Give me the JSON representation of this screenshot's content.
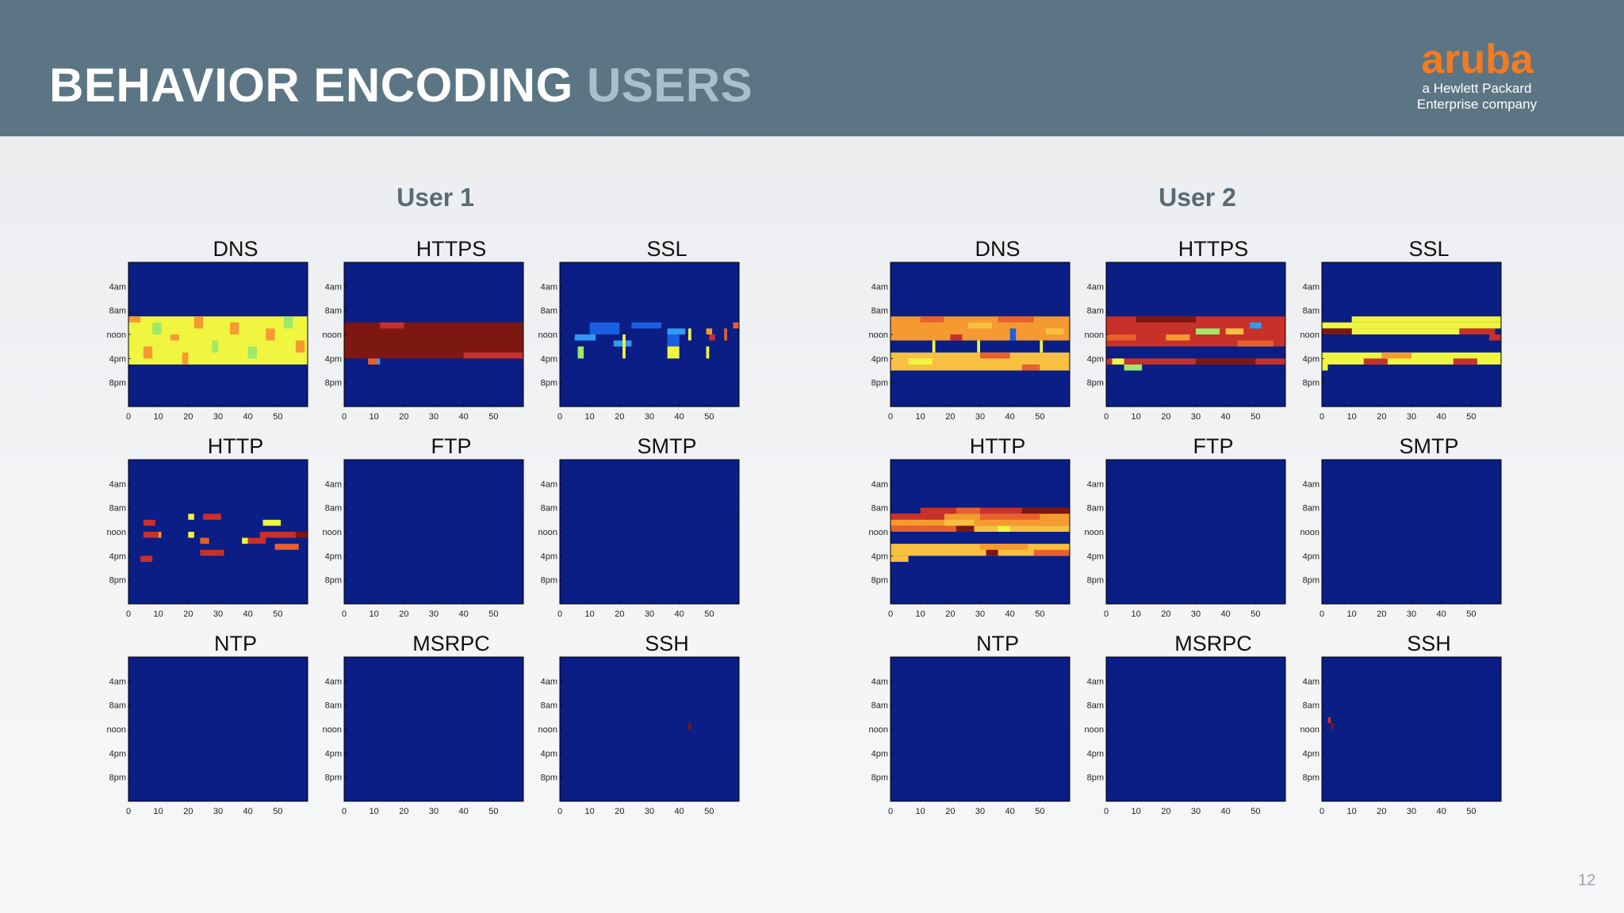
{
  "slide": {
    "title_main": "BEHAVIOR ENCODING",
    "title_accent": "USERS",
    "page_number": "12"
  },
  "logo": {
    "brand": "aruba",
    "tagline_1": "a Hewlett Packard",
    "tagline_2": "Enterprise company",
    "color": "#f47b20"
  },
  "colors": {
    "header": "#5b7584",
    "background": "#0a1e85",
    "levels": [
      "#0a1e85",
      "#1a5fe0",
      "#2f9bf4",
      "#9ee86a",
      "#f0f540",
      "#f8c040",
      "#f59a30",
      "#e8602c",
      "#c8302a",
      "#7d1712"
    ]
  },
  "chart_data": [
    {
      "user": "User 1",
      "type": "heatmap",
      "y_tick_labels": [
        "4am",
        "8am",
        "noon",
        "4pm",
        "8pm"
      ],
      "x_ticks": [
        0,
        10,
        20,
        30,
        40,
        50
      ],
      "xlim": [
        0,
        60
      ],
      "panels": [
        {
          "protocol": "DNS",
          "blocks": [
            {
              "x0": 0,
              "x1": 60,
              "y0": 9,
              "y1": 17,
              "level": 4
            },
            {
              "x0": 0,
              "x1": 4,
              "y0": 9,
              "y1": 10,
              "level": 6
            },
            {
              "x0": 8,
              "x1": 11,
              "y0": 10,
              "y1": 12,
              "level": 3
            },
            {
              "x0": 14,
              "x1": 17,
              "y0": 12,
              "y1": 13,
              "level": 6
            },
            {
              "x0": 22,
              "x1": 25,
              "y0": 9,
              "y1": 11,
              "level": 6
            },
            {
              "x0": 28,
              "x1": 30,
              "y0": 13,
              "y1": 15,
              "level": 3
            },
            {
              "x0": 34,
              "x1": 37,
              "y0": 10,
              "y1": 12,
              "level": 6
            },
            {
              "x0": 40,
              "x1": 43,
              "y0": 14,
              "y1": 16,
              "level": 3
            },
            {
              "x0": 46,
              "x1": 49,
              "y0": 11,
              "y1": 13,
              "level": 6
            },
            {
              "x0": 52,
              "x1": 55,
              "y0": 9,
              "y1": 11,
              "level": 3
            },
            {
              "x0": 5,
              "x1": 8,
              "y0": 14,
              "y1": 16,
              "level": 6
            },
            {
              "x0": 18,
              "x1": 20,
              "y0": 15,
              "y1": 17,
              "level": 6
            },
            {
              "x0": 56,
              "x1": 59,
              "y0": 13,
              "y1": 15,
              "level": 6
            }
          ]
        },
        {
          "protocol": "HTTPS",
          "blocks": [
            {
              "x0": 0,
              "x1": 60,
              "y0": 10,
              "y1": 16,
              "level": 9
            },
            {
              "x0": 12,
              "x1": 20,
              "y0": 10,
              "y1": 11,
              "level": 8
            },
            {
              "x0": 40,
              "x1": 60,
              "y0": 15,
              "y1": 16,
              "level": 8
            },
            {
              "x0": 8,
              "x1": 12,
              "y0": 16,
              "y1": 17,
              "level": 7
            },
            {
              "x0": 11,
              "x1": 12,
              "y0": 16,
              "y1": 17,
              "level": 2
            }
          ]
        },
        {
          "protocol": "SSL",
          "blocks": [
            {
              "x0": 10,
              "x1": 20,
              "y0": 10,
              "y1": 12,
              "level": 1
            },
            {
              "x0": 24,
              "x1": 34,
              "y0": 10,
              "y1": 11,
              "level": 1
            },
            {
              "x0": 36,
              "x1": 40,
              "y0": 12,
              "y1": 14,
              "level": 1
            },
            {
              "x0": 5,
              "x1": 12,
              "y0": 12,
              "y1": 13,
              "level": 2
            },
            {
              "x0": 18,
              "x1": 24,
              "y0": 13,
              "y1": 14,
              "level": 2
            },
            {
              "x0": 36,
              "x1": 42,
              "y0": 11,
              "y1": 12,
              "level": 2
            },
            {
              "x0": 6,
              "x1": 8,
              "y0": 14,
              "y1": 16,
              "level": 3
            },
            {
              "x0": 36,
              "x1": 40,
              "y0": 14,
              "y1": 16,
              "level": 4
            },
            {
              "x0": 21,
              "x1": 22,
              "y0": 12,
              "y1": 16,
              "level": 4
            },
            {
              "x0": 43,
              "x1": 44,
              "y0": 11,
              "y1": 13,
              "level": 4
            },
            {
              "x0": 49,
              "x1": 51,
              "y0": 11,
              "y1": 12,
              "level": 6
            },
            {
              "x0": 50,
              "x1": 52,
              "y0": 12,
              "y1": 13,
              "level": 8
            },
            {
              "x0": 55,
              "x1": 56,
              "y0": 11,
              "y1": 13,
              "level": 7
            },
            {
              "x0": 49,
              "x1": 50,
              "y0": 14,
              "y1": 16,
              "level": 4
            },
            {
              "x0": 58,
              "x1": 60,
              "y0": 10,
              "y1": 11,
              "level": 7
            }
          ]
        },
        {
          "protocol": "HTTP",
          "blocks": [
            {
              "x0": 5,
              "x1": 9,
              "y0": 10,
              "y1": 11,
              "level": 8
            },
            {
              "x0": 20,
              "x1": 22,
              "y0": 9,
              "y1": 10,
              "level": 4
            },
            {
              "x0": 25,
              "x1": 31,
              "y0": 9,
              "y1": 10,
              "level": 8
            },
            {
              "x0": 5,
              "x1": 10,
              "y0": 12,
              "y1": 13,
              "level": 8
            },
            {
              "x0": 10,
              "x1": 11,
              "y0": 12,
              "y1": 13,
              "level": 6
            },
            {
              "x0": 20,
              "x1": 22,
              "y0": 12,
              "y1": 13,
              "level": 4
            },
            {
              "x0": 24,
              "x1": 27,
              "y0": 13,
              "y1": 14,
              "level": 7
            },
            {
              "x0": 38,
              "x1": 40,
              "y0": 13,
              "y1": 14,
              "level": 4
            },
            {
              "x0": 40,
              "x1": 46,
              "y0": 13,
              "y1": 14,
              "level": 8
            },
            {
              "x0": 44,
              "x1": 56,
              "y0": 12,
              "y1": 13,
              "level": 8
            },
            {
              "x0": 56,
              "x1": 60,
              "y0": 12,
              "y1": 13,
              "level": 9
            },
            {
              "x0": 45,
              "x1": 51,
              "y0": 10,
              "y1": 11,
              "level": 4
            },
            {
              "x0": 49,
              "x1": 57,
              "y0": 14,
              "y1": 15,
              "level": 7
            },
            {
              "x0": 24,
              "x1": 32,
              "y0": 15,
              "y1": 16,
              "level": 8
            },
            {
              "x0": 4,
              "x1": 8,
              "y0": 16,
              "y1": 17,
              "level": 8
            }
          ]
        },
        {
          "protocol": "FTP",
          "blocks": []
        },
        {
          "protocol": "SMTP",
          "blocks": []
        },
        {
          "protocol": "NTP",
          "blocks": []
        },
        {
          "protocol": "MSRPC",
          "blocks": []
        },
        {
          "protocol": "SSH",
          "blocks": [
            {
              "x0": 43,
              "x1": 44,
              "y0": 11,
              "y1": 12,
              "level": 9
            }
          ]
        }
      ]
    },
    {
      "user": "User 2",
      "type": "heatmap",
      "y_tick_labels": [
        "4am",
        "8am",
        "noon",
        "4pm",
        "8pm"
      ],
      "x_ticks": [
        0,
        10,
        20,
        30,
        40,
        50
      ],
      "xlim": [
        0,
        60
      ],
      "panels": [
        {
          "protocol": "DNS",
          "blocks": [
            {
              "x0": 0,
              "x1": 60,
              "y0": 9,
              "y1": 13,
              "level": 6
            },
            {
              "x0": 0,
              "x1": 60,
              "y0": 15,
              "y1": 18,
              "level": 5
            },
            {
              "x0": 10,
              "x1": 18,
              "y0": 9,
              "y1": 10,
              "level": 7
            },
            {
              "x0": 26,
              "x1": 34,
              "y0": 10,
              "y1": 11,
              "level": 5
            },
            {
              "x0": 36,
              "x1": 48,
              "y0": 9,
              "y1": 10,
              "level": 7
            },
            {
              "x0": 52,
              "x1": 58,
              "y0": 11,
              "y1": 12,
              "level": 5
            },
            {
              "x0": 20,
              "x1": 24,
              "y0": 12,
              "y1": 13,
              "level": 8
            },
            {
              "x0": 40,
              "x1": 42,
              "y0": 11,
              "y1": 13,
              "level": 1
            },
            {
              "x0": 14,
              "x1": 15,
              "y0": 13,
              "y1": 15,
              "level": 4
            },
            {
              "x0": 29,
              "x1": 30,
              "y0": 13,
              "y1": 15,
              "level": 4
            },
            {
              "x0": 50,
              "x1": 51,
              "y0": 13,
              "y1": 15,
              "level": 4
            },
            {
              "x0": 6,
              "x1": 14,
              "y0": 16,
              "y1": 17,
              "level": 4
            },
            {
              "x0": 30,
              "x1": 40,
              "y0": 15,
              "y1": 16,
              "level": 7
            },
            {
              "x0": 44,
              "x1": 50,
              "y0": 17,
              "y1": 18,
              "level": 7
            }
          ]
        },
        {
          "protocol": "HTTPS",
          "blocks": [
            {
              "x0": 0,
              "x1": 60,
              "y0": 9,
              "y1": 14,
              "level": 8
            },
            {
              "x0": 0,
              "x1": 60,
              "y0": 16,
              "y1": 17,
              "level": 8
            },
            {
              "x0": 10,
              "x1": 30,
              "y0": 9,
              "y1": 10,
              "level": 9
            },
            {
              "x0": 30,
              "x1": 38,
              "y0": 11,
              "y1": 12,
              "level": 3
            },
            {
              "x0": 40,
              "x1": 46,
              "y0": 11,
              "y1": 12,
              "level": 5
            },
            {
              "x0": 48,
              "x1": 52,
              "y0": 10,
              "y1": 11,
              "level": 2
            },
            {
              "x0": 20,
              "x1": 28,
              "y0": 12,
              "y1": 13,
              "level": 6
            },
            {
              "x0": 44,
              "x1": 56,
              "y0": 13,
              "y1": 14,
              "level": 7
            },
            {
              "x0": 0,
              "x1": 10,
              "y0": 12,
              "y1": 13,
              "level": 7
            },
            {
              "x0": 2,
              "x1": 6,
              "y0": 16,
              "y1": 17,
              "level": 4
            },
            {
              "x0": 6,
              "x1": 12,
              "y0": 17,
              "y1": 18,
              "level": 3
            },
            {
              "x0": 30,
              "x1": 50,
              "y0": 16,
              "y1": 17,
              "level": 9
            }
          ]
        },
        {
          "protocol": "SSL",
          "blocks": [
            {
              "x0": 10,
              "x1": 60,
              "y0": 9,
              "y1": 10,
              "level": 4
            },
            {
              "x0": 0,
              "x1": 60,
              "y0": 10,
              "y1": 11,
              "level": 4
            },
            {
              "x0": 10,
              "x1": 55,
              "y0": 11,
              "y1": 12,
              "level": 4
            },
            {
              "x0": 0,
              "x1": 10,
              "y0": 11,
              "y1": 12,
              "level": 9
            },
            {
              "x0": 46,
              "x1": 58,
              "y0": 11,
              "y1": 12,
              "level": 8
            },
            {
              "x0": 56,
              "x1": 60,
              "y0": 12,
              "y1": 13,
              "level": 8
            },
            {
              "x0": 0,
              "x1": 60,
              "y0": 15,
              "y1": 17,
              "level": 4
            },
            {
              "x0": 14,
              "x1": 22,
              "y0": 16,
              "y1": 17,
              "level": 8
            },
            {
              "x0": 44,
              "x1": 52,
              "y0": 16,
              "y1": 17,
              "level": 8
            },
            {
              "x0": 0,
              "x1": 2,
              "y0": 17,
              "y1": 18,
              "level": 4
            },
            {
              "x0": 20,
              "x1": 30,
              "y0": 15,
              "y1": 16,
              "level": 6
            }
          ]
        },
        {
          "protocol": "HTTP",
          "blocks": [
            {
              "x0": 10,
              "x1": 60,
              "y0": 8,
              "y1": 9,
              "level": 8
            },
            {
              "x0": 22,
              "x1": 30,
              "y0": 8,
              "y1": 9,
              "level": 7
            },
            {
              "x0": 44,
              "x1": 60,
              "y0": 8,
              "y1": 9,
              "level": 9
            },
            {
              "x0": 0,
              "x1": 60,
              "y0": 9,
              "y1": 11,
              "level": 6
            },
            {
              "x0": 0,
              "x1": 18,
              "y0": 9,
              "y1": 10,
              "level": 8
            },
            {
              "x0": 18,
              "x1": 28,
              "y0": 10,
              "y1": 11,
              "level": 5
            },
            {
              "x0": 30,
              "x1": 50,
              "y0": 9,
              "y1": 10,
              "level": 7
            },
            {
              "x0": 0,
              "x1": 22,
              "y0": 11,
              "y1": 12,
              "level": 7
            },
            {
              "x0": 22,
              "x1": 60,
              "y0": 11,
              "y1": 12,
              "level": 5
            },
            {
              "x0": 22,
              "x1": 28,
              "y0": 11,
              "y1": 12,
              "level": 9
            },
            {
              "x0": 36,
              "x1": 40,
              "y0": 11,
              "y1": 12,
              "level": 4
            },
            {
              "x0": 0,
              "x1": 60,
              "y0": 14,
              "y1": 16,
              "level": 5
            },
            {
              "x0": 30,
              "x1": 46,
              "y0": 14,
              "y1": 15,
              "level": 6
            },
            {
              "x0": 32,
              "x1": 36,
              "y0": 15,
              "y1": 16,
              "level": 9
            },
            {
              "x0": 0,
              "x1": 6,
              "y0": 16,
              "y1": 17,
              "level": 5
            },
            {
              "x0": 48,
              "x1": 60,
              "y0": 15,
              "y1": 16,
              "level": 7
            }
          ]
        },
        {
          "protocol": "FTP",
          "blocks": []
        },
        {
          "protocol": "SMTP",
          "blocks": []
        },
        {
          "protocol": "NTP",
          "blocks": []
        },
        {
          "protocol": "MSRPC",
          "blocks": []
        },
        {
          "protocol": "SSH",
          "blocks": [
            {
              "x0": 2,
              "x1": 3,
              "y0": 10,
              "y1": 11,
              "level": 8
            },
            {
              "x0": 3,
              "x1": 4,
              "y0": 11,
              "y1": 12,
              "level": 9
            }
          ]
        }
      ]
    }
  ]
}
